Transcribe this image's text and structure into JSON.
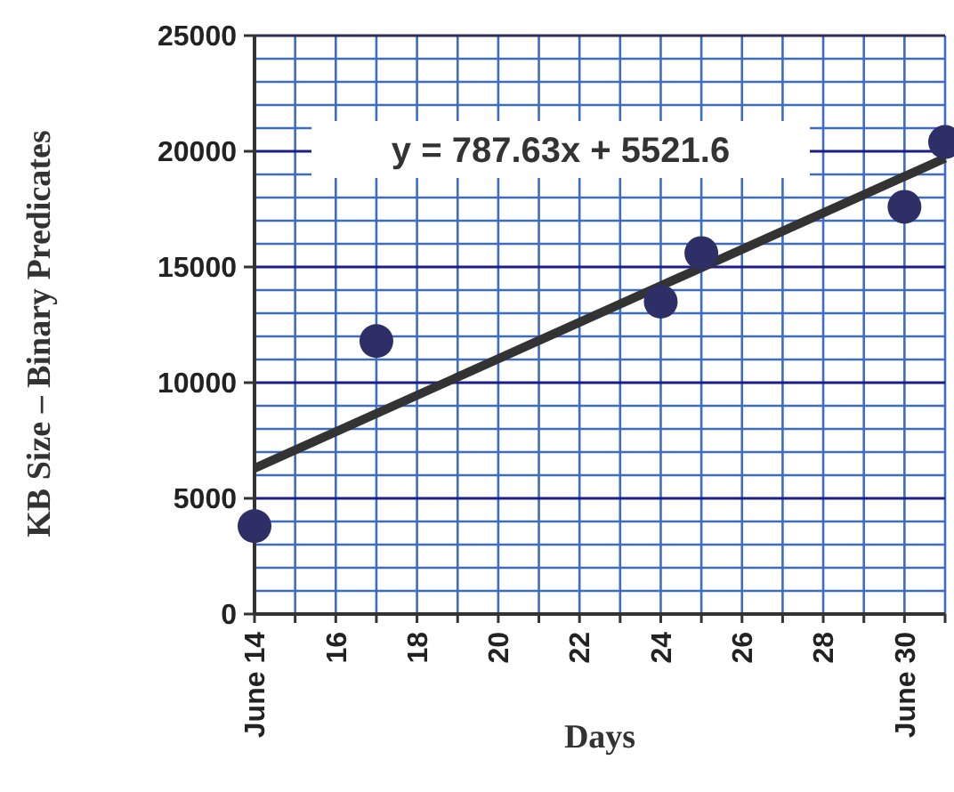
{
  "chart_data": {
    "type": "scatter",
    "xlabel": "Days",
    "ylabel": "KB Size – Binary Predicates",
    "annotations": [
      "y = 787.63x + 5521.6"
    ],
    "series": [
      {
        "color": "#2e2f66",
        "x": [
          14,
          17,
          24,
          25,
          30,
          31
        ],
        "values": [
          3800,
          11800,
          13500,
          15600,
          17600,
          20400
        ],
        "marker": "circle"
      },
      {
        "type": "line",
        "color": "#333333",
        "x": [
          14,
          31
        ],
        "values": [
          6300,
          19700
        ],
        "marker": "none"
      }
    ],
    "xlim": [
      14,
      31
    ],
    "xticks": [
      {
        "value": 14,
        "label": "June 14"
      },
      {
        "value": 15,
        "label": null
      },
      16,
      {
        "value": 17,
        "label": null
      },
      18,
      {
        "value": 19,
        "label": null
      },
      20,
      {
        "value": 21,
        "label": null
      },
      22,
      {
        "value": 23,
        "label": null
      },
      24,
      {
        "value": 25,
        "label": null
      },
      26,
      {
        "value": 27,
        "label": null
      },
      28,
      {
        "value": 29,
        "label": null
      },
      {
        "value": 30,
        "label": "June 30"
      },
      {
        "value": 31,
        "label": null
      }
    ],
    "ylim": [
      0,
      25000
    ],
    "yticks": [
      0,
      {
        "value": 1000,
        "label": null
      },
      {
        "value": 2000,
        "label": null
      },
      {
        "value": 3000,
        "label": null
      },
      {
        "value": 4000,
        "label": null
      },
      5000,
      {
        "value": 6000,
        "label": null
      },
      {
        "value": 7000,
        "label": null
      },
      {
        "value": 8000,
        "label": null
      },
      {
        "value": 9000,
        "label": null
      },
      10000,
      {
        "value": 11000,
        "label": null
      },
      {
        "value": 12000,
        "label": null
      },
      {
        "value": 13000,
        "label": null
      },
      {
        "value": 14000,
        "label": null
      },
      15000,
      {
        "value": 16000,
        "label": null
      },
      {
        "value": 17000,
        "label": null
      },
      {
        "value": 18000,
        "label": null
      },
      {
        "value": 19000,
        "label": null
      },
      20000,
      {
        "value": 21000,
        "label": null
      },
      {
        "value": 22000,
        "label": null
      },
      {
        "value": 23000,
        "label": null
      },
      {
        "value": 24000,
        "label": null
      },
      25000
    ],
    "grid": true
  }
}
